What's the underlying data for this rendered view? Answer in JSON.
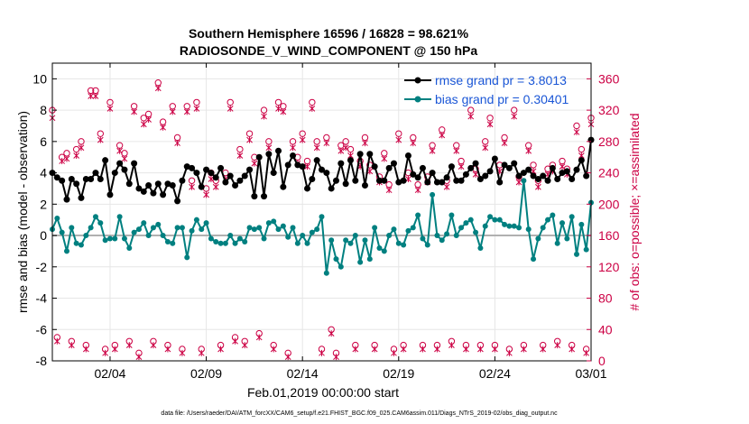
{
  "colors": {
    "rmse": "#000000",
    "bias": "#008080",
    "obs": "#cc0044",
    "legend_text": "#1a56d6",
    "zero_line": "#b0b0b0",
    "grid": "#e6e6e6"
  },
  "chart_data": {
    "type": "line",
    "title": "Southern Hemisphere 16596 / 16828 = 98.621%",
    "subtitle": "RADIOSONDE_V_WIND_COMPONENT @ 150 hPa",
    "xlabel": "Feb.01,2019 00:00:00 start",
    "ylabel": "rmse and bias (model - observation)",
    "ylabel_right": "# of obs: o=possible; ×=assimilated",
    "footnote": "data file: /Users/raeder/DAI/ATM_forcXX/CAM6_setup/f.e21.FHIST_BGC.f09_025.CAM6assim.011/Diags_NTrS_2019-02/obs_diag_output.nc",
    "xlim": [
      1,
      29
    ],
    "ylim": [
      -8,
      11
    ],
    "ylim_right": [
      0,
      380
    ],
    "x_ticks": [
      4,
      9,
      14,
      19,
      24,
      29
    ],
    "x_tick_labels": [
      "02/04",
      "02/09",
      "02/14",
      "02/19",
      "02/24",
      "03/01"
    ],
    "y_ticks": [
      -8,
      -6,
      -4,
      -2,
      0,
      2,
      4,
      6,
      8,
      10
    ],
    "y_tick_labels": [
      "-8",
      "-6",
      "-4",
      "-2",
      "0",
      "2",
      "4",
      "6",
      "8",
      "10"
    ],
    "y_ticks_right": [
      0,
      40,
      80,
      120,
      160,
      200,
      240,
      280,
      320,
      360
    ],
    "y_tick_labels_right": [
      "0",
      "40",
      "80",
      "120",
      "160",
      "200",
      "240",
      "280",
      "320",
      "360"
    ],
    "legend": {
      "position": "top-right",
      "entries": [
        "rmse grand pr = 3.8013",
        "bias grand pr = 0.30401"
      ]
    },
    "x_start": 1.0,
    "x_step": 0.25,
    "series": [
      {
        "name": "rmse",
        "values": [
          4.0,
          3.7,
          3.5,
          2.3,
          3.6,
          3.3,
          2.4,
          3.6,
          3.6,
          4.0,
          3.6,
          4.8,
          2.6,
          4.0,
          4.6,
          4.2,
          3.3,
          4.6,
          3.0,
          2.8,
          3.2,
          2.7,
          3.3,
          2.6,
          3.3,
          3.2,
          2.2,
          3.5,
          4.4,
          4.3,
          4.0,
          3.1,
          4.2,
          4.0,
          3.7,
          4.3,
          3.4,
          3.8,
          3.2,
          3.5,
          3.8,
          4.2,
          2.5,
          5.0,
          2.5,
          5.2,
          4.0,
          5.4,
          3.1,
          4.5,
          5.1,
          4.5,
          4.4,
          3.0,
          3.6,
          4.8,
          4.2,
          4.0,
          3.0,
          3.5,
          4.6,
          3.3,
          4.8,
          3.5,
          5.2,
          3.2,
          5.2,
          4.4,
          3.5,
          3.5,
          4.3,
          4.6,
          3.4,
          3.5,
          5.1,
          3.9,
          3.7,
          4.3,
          3.4,
          4.0,
          3.4,
          3.4,
          3.7,
          4.4,
          3.5,
          3.5,
          3.9,
          4.3,
          4.6,
          3.6,
          3.8,
          4.1,
          4.9,
          3.4,
          4.5,
          4.3,
          4.6,
          3.8,
          4.0,
          4.2,
          3.8,
          3.6,
          3.8,
          3.5,
          4.3,
          3.6,
          4.0,
          4.1,
          3.6,
          4.2,
          4.8,
          3.8,
          6.1,
          4.0,
          5.8,
          4.8,
          5.6,
          3.7,
          4.9,
          5.5,
          4.2,
          5.1,
          3.7,
          4.0,
          4.6,
          4.1,
          4.4,
          4.7,
          4.5,
          4.2,
          4.3,
          3.8,
          4.0,
          4.1,
          4.0,
          3.5,
          4.4,
          4.5
        ]
      },
      {
        "name": "bias",
        "values": [
          0.4,
          1.1,
          0.2,
          -1.0,
          0.5,
          -0.5,
          -0.6,
          0.0,
          0.5,
          1.2,
          0.8,
          -0.3,
          -0.2,
          -0.2,
          1.2,
          -0.2,
          -0.8,
          0.2,
          0.4,
          0.8,
          0.0,
          0.5,
          0.7,
          0.0,
          -0.4,
          -0.5,
          0.5,
          0.5,
          -1.4,
          0.3,
          1.0,
          0.4,
          0.8,
          -0.2,
          -0.4,
          -0.5,
          -0.5,
          0.0,
          -0.5,
          -0.2,
          -0.4,
          0.5,
          0.4,
          0.5,
          -0.2,
          0.8,
          0.9,
          0.4,
          0.6,
          -0.1,
          0.5,
          -0.5,
          0.0,
          -0.5,
          0.2,
          0.4,
          1.2,
          -2.4,
          -0.3,
          -1.5,
          -2.0,
          -0.3,
          -0.5,
          0.0,
          -1.7,
          -0.3,
          -1.5,
          0.5,
          -0.8,
          -1.0,
          0.0,
          0.4,
          -0.5,
          -0.6,
          0.3,
          0.5,
          1.3,
          -0.2,
          -0.6,
          2.6,
          0.0,
          -0.3,
          0.1,
          1.3,
          0.0,
          0.5,
          0.8,
          1.0,
          0.2,
          -0.8,
          0.6,
          1.2,
          1.0,
          1.0,
          0.7,
          0.6,
          0.6,
          0.5,
          3.5,
          0.4,
          -1.5,
          -0.2,
          0.5,
          1.0,
          1.3,
          -0.5,
          0.8,
          -0.2,
          1.2,
          -1.2,
          0.7,
          -0.9,
          2.1,
          0.4,
          0.0,
          1.2,
          -1.0,
          0.3,
          1.1,
          0.0,
          -2.5,
          0.2,
          0.2,
          0.5,
          0.5,
          2.1,
          1.0,
          -1.7,
          1.5,
          2.9
        ]
      },
      {
        "name": "possible",
        "values": [
          320,
          30,
          260,
          265,
          25,
          270,
          280,
          20,
          345,
          345,
          290,
          15,
          330,
          20,
          275,
          265,
          25,
          325,
          10,
          310,
          315,
          25,
          355,
          305,
          20,
          325,
          285,
          15,
          325,
          230,
          330,
          15,
          220,
          240,
          230,
          20,
          240,
          330,
          30,
          270,
          25,
          290,
          260,
          35,
          320,
          280,
          20,
          330,
          325,
          10,
          280,
          260,
          290,
          255,
          330,
          280,
          15,
          285,
          40,
          10,
          275,
          280,
          270,
          20,
          255,
          285,
          250,
          20,
          235,
          265,
          225,
          15,
          290,
          20,
          240,
          285,
          225,
          20,
          235,
          275,
          20,
          295,
          230,
          25,
          275,
          255,
          20,
          320,
          245,
          20,
          280,
          310,
          20,
          250,
          285,
          15,
          320,
          235,
          20,
          275,
          250,
          230,
          20,
          245,
          250,
          25,
          255,
          245,
          20,
          300,
          270,
          15,
          310,
          285,
          15,
          270
        ]
      },
      {
        "name": "assimilated",
        "values": [
          310,
          25,
          255,
          258,
          20,
          262,
          272,
          15,
          338,
          338,
          282,
          10,
          322,
          15,
          268,
          258,
          20,
          318,
          5,
          302,
          308,
          20,
          348,
          298,
          15,
          318,
          278,
          10,
          318,
          222,
          322,
          10,
          212,
          232,
          222,
          15,
          232,
          322,
          25,
          262,
          20,
          282,
          252,
          30,
          312,
          272,
          15,
          322,
          318,
          5,
          272,
          252,
          282,
          248,
          322,
          272,
          10,
          278,
          35,
          5,
          268,
          272,
          262,
          15,
          248,
          278,
          242,
          15,
          228,
          258,
          218,
          10,
          282,
          15,
          232,
          278,
          218,
          15,
          228,
          268,
          15,
          288,
          222,
          20,
          268,
          248,
          15,
          312,
          238,
          15,
          272,
          302,
          15,
          242,
          278,
          10,
          312,
          228,
          15,
          268,
          242,
          222,
          15,
          238,
          242,
          20,
          248,
          238,
          15,
          292,
          262,
          10,
          302,
          278,
          10,
          262
        ]
      }
    ]
  }
}
